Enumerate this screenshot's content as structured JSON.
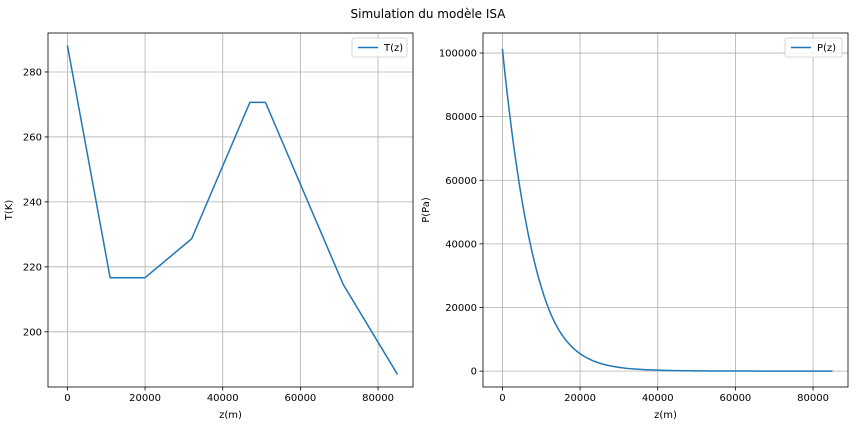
{
  "figure": {
    "title": "Simulation du modèle ISA"
  },
  "chart_data": [
    {
      "type": "line",
      "xlabel": "z(m)",
      "ylabel": "T(K)",
      "xlim": [
        -5000,
        89000
      ],
      "ylim": [
        183,
        292
      ],
      "xticks": [
        0,
        20000,
        40000,
        60000,
        80000
      ],
      "yticks": [
        200,
        220,
        240,
        260,
        280
      ],
      "grid": true,
      "legend": "top-right",
      "series": [
        {
          "name": "T(z)",
          "color": "#1f77b4",
          "x": [
            0,
            11000,
            20000,
            32000,
            47000,
            51000,
            71000,
            85000
          ],
          "y": [
            288.15,
            216.65,
            216.65,
            228.65,
            270.65,
            270.65,
            214.65,
            186.87
          ]
        }
      ]
    },
    {
      "type": "line",
      "xlabel": "z(m)",
      "ylabel": "P(Pa)",
      "xlim": [
        -5000,
        89000
      ],
      "ylim": [
        -5000,
        106300
      ],
      "xticks": [
        0,
        20000,
        40000,
        60000,
        80000
      ],
      "yticks": [
        0,
        20000,
        40000,
        60000,
        80000,
        100000
      ],
      "grid": true,
      "legend": "top-right",
      "series": [
        {
          "name": "P(z)",
          "color": "#1f77b4",
          "x": [
            0,
            2000,
            4000,
            6000,
            8000,
            10000,
            11000,
            14000,
            17000,
            20000,
            25000,
            32000,
            40000,
            47000,
            51000,
            60000,
            71000,
            85000
          ],
          "y": [
            101325,
            79500,
            61640,
            47180,
            35600,
            26500,
            22632,
            14100,
            8780,
            5475,
            2511,
            868,
            287,
            111,
            67,
            22,
            4,
            0.4
          ]
        }
      ]
    }
  ]
}
